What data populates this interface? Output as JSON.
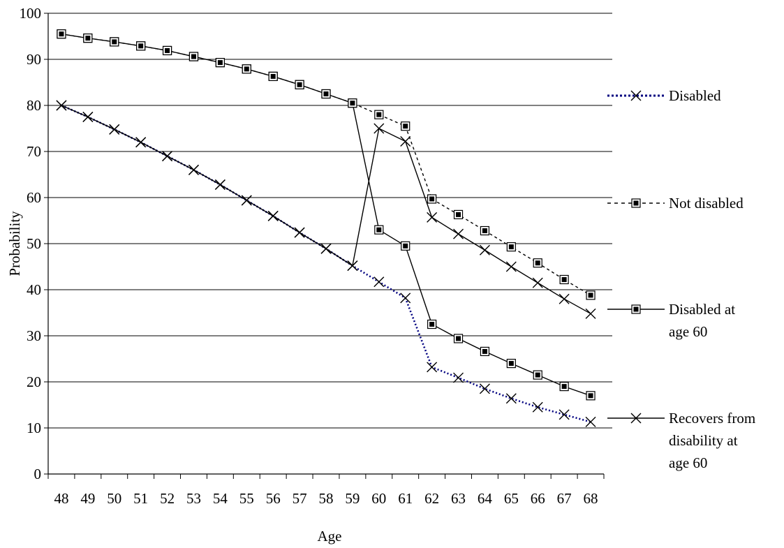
{
  "chart_data": {
    "type": "line",
    "title": "",
    "xlabel": "Age",
    "ylabel": "Probability",
    "ylim": [
      0,
      100
    ],
    "yticks": [
      "0",
      "10",
      "20",
      "30",
      "40",
      "50",
      "60",
      "70",
      "80",
      "90",
      "100"
    ],
    "x": [
      48,
      49,
      50,
      51,
      52,
      53,
      54,
      55,
      56,
      57,
      58,
      59,
      60,
      61,
      62,
      63,
      64,
      65,
      66,
      67,
      68
    ],
    "grid": "horizontal",
    "legend_position": "right",
    "series": [
      {
        "name": "Disabled",
        "style": "dotted",
        "color": "#000080",
        "marker": "x",
        "values": [
          80,
          77.5,
          74.8,
          72,
          69,
          66,
          62.8,
          59.4,
          56,
          52.4,
          48.9,
          45.2,
          41.7,
          38.2,
          23.2,
          20.9,
          18.5,
          16.4,
          14.5,
          12.9,
          11.3
        ]
      },
      {
        "name": "Not disabled",
        "style": "dashed",
        "color": "#000000",
        "marker": "square",
        "values": [
          95.5,
          94.6,
          93.8,
          92.9,
          91.9,
          90.6,
          89.3,
          87.9,
          86.3,
          84.5,
          82.5,
          80.5,
          78,
          75.5,
          59.7,
          56.3,
          52.8,
          49.3,
          45.8,
          42.2,
          38.8
        ]
      },
      {
        "name": "Disabled at\nage 60",
        "style": "solid",
        "color": "#000000",
        "marker": "square",
        "values": [
          95.5,
          94.6,
          93.8,
          92.9,
          91.9,
          90.6,
          89.3,
          87.9,
          86.3,
          84.5,
          82.5,
          80.5,
          53,
          49.5,
          32.5,
          29.4,
          26.6,
          24,
          21.5,
          19,
          17
        ]
      },
      {
        "name": "Recovers from\ndisability at\nage 60",
        "style": "solid",
        "color": "#000000",
        "marker": "x",
        "values": [
          80,
          77.5,
          74.8,
          72,
          69,
          66,
          62.8,
          59.4,
          56,
          52.4,
          48.9,
          45.2,
          75,
          72.2,
          55.7,
          52.1,
          48.6,
          45,
          41.5,
          38,
          34.8
        ]
      }
    ]
  }
}
